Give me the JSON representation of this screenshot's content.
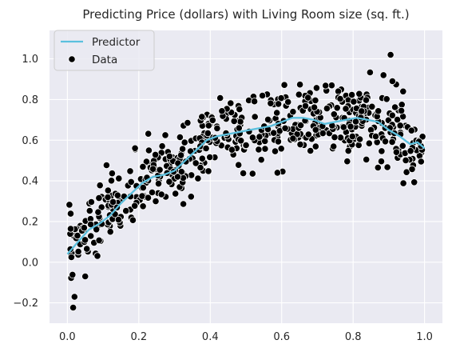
{
  "chart_data": {
    "type": "scatter",
    "title": "Predicting Price (dollars) with Living Room size (sq. ft.)",
    "xlabel": "",
    "ylabel": "",
    "xlim": [
      -0.05,
      1.05
    ],
    "ylim": [
      -0.3,
      1.14
    ],
    "x_ticks": [
      0.0,
      0.2,
      0.4,
      0.6,
      0.8,
      1.0
    ],
    "y_ticks": [
      -0.2,
      0.0,
      0.2,
      0.4,
      0.6,
      0.8,
      1.0
    ],
    "x_tick_labels": [
      "0.0",
      "0.2",
      "0.4",
      "0.6",
      "0.8",
      "1.0"
    ],
    "y_tick_labels": [
      "−0.2",
      "0.0",
      "0.2",
      "0.4",
      "0.6",
      "0.8",
      "1.0"
    ],
    "grid": true,
    "legend_position": "top-left",
    "background_color": "#eaeaf2",
    "series": [
      {
        "name": "Predictor",
        "kind": "line",
        "color": "#5bc0de",
        "x": [
          0.0,
          0.03,
          0.06,
          0.09,
          0.12,
          0.15,
          0.18,
          0.21,
          0.24,
          0.27,
          0.3,
          0.33,
          0.36,
          0.39,
          0.42,
          0.45,
          0.48,
          0.51,
          0.54,
          0.57,
          0.6,
          0.63,
          0.66,
          0.69,
          0.72,
          0.75,
          0.78,
          0.81,
          0.84,
          0.87,
          0.9,
          0.93,
          0.96,
          0.98,
          1.0
        ],
        "y": [
          0.04,
          0.1,
          0.16,
          0.19,
          0.23,
          0.29,
          0.34,
          0.39,
          0.42,
          0.43,
          0.45,
          0.5,
          0.55,
          0.6,
          0.62,
          0.63,
          0.64,
          0.65,
          0.66,
          0.67,
          0.69,
          0.71,
          0.71,
          0.7,
          0.68,
          0.69,
          0.7,
          0.71,
          0.7,
          0.69,
          0.65,
          0.62,
          0.58,
          0.59,
          0.56
        ]
      },
      {
        "name": "Data",
        "kind": "scatter",
        "color": "#000000",
        "n_points": 560,
        "noise_sd": 0.085,
        "outliers": [
          [
            0.02,
            -0.17
          ],
          [
            0.05,
            -0.07
          ],
          [
            0.905,
            1.02
          ],
          [
            0.91,
            0.89
          ],
          [
            0.885,
            0.92
          ],
          [
            0.94,
            0.84
          ]
        ]
      }
    ]
  }
}
